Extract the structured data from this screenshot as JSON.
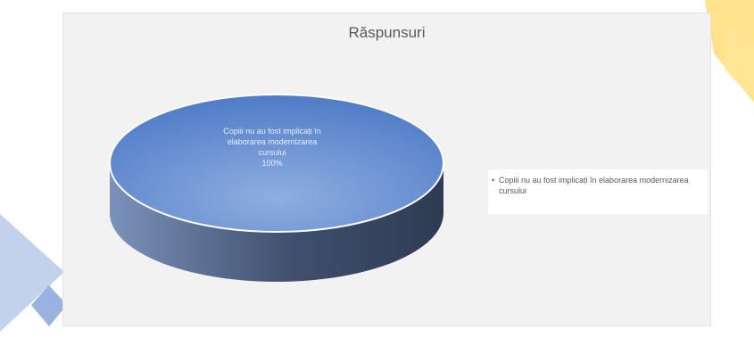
{
  "chart_data": {
    "type": "pie",
    "style": "3d",
    "title": "Răspunsuri",
    "categories": [
      "Copiii nu au fost implicați în elaborarea modernizarea cursului"
    ],
    "values": [
      100
    ],
    "data_labels": [
      {
        "lines": [
          "Copiii nu au fost implicați în",
          "elaborarea modernizarea",
          "cursului"
        ],
        "percent": "100%"
      }
    ],
    "legend": {
      "position": "right",
      "entries": [
        "Copiii nu au fost implicați în elaborarea modernizarea cursului"
      ]
    },
    "colors": {
      "slice_top": "#4f7bc7",
      "slice_top_light": "#8eaee0",
      "slice_side_dark": "#2e3b52",
      "slice_side_light": "#7b92ba"
    }
  },
  "decor_colors": {
    "yellow": "#ffd966",
    "blue": "#b4c7e7",
    "blue_dark": "#8faadc"
  }
}
